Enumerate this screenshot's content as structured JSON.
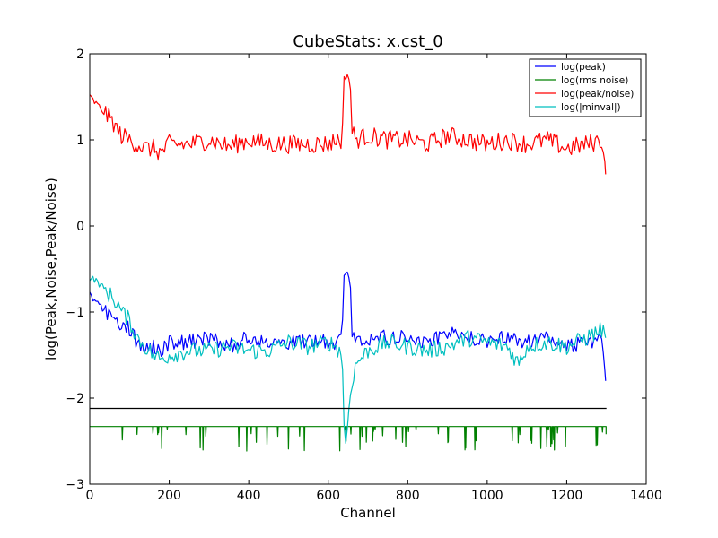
{
  "chart_data": {
    "type": "line",
    "title": "CubeStats: x.cst_0",
    "xlabel": "Channel",
    "ylabel": "log(Peak,Noise,Peak/Noise)",
    "xlim": [
      0,
      1400
    ],
    "ylim": [
      -3,
      2
    ],
    "xticks": [
      0,
      200,
      400,
      600,
      800,
      1000,
      1200,
      1400
    ],
    "yticks": [
      -3,
      -2,
      -1,
      0,
      1,
      2
    ],
    "xtick_labels": [
      "0",
      "200",
      "400",
      "600",
      "800",
      "1000",
      "1200",
      "1400"
    ],
    "ytick_labels": [
      "−3",
      "−2",
      "−1",
      "0",
      "1",
      "2"
    ],
    "grid": false,
    "legend_position": "top-right",
    "n_channels": 1300,
    "series": [
      {
        "name": "log(peak)",
        "color": "#0000ff",
        "x": [
          0,
          10,
          20,
          30,
          40,
          50,
          60,
          70,
          80,
          100,
          120,
          140,
          160,
          180,
          200,
          250,
          300,
          350,
          400,
          450,
          500,
          550,
          600,
          620,
          635,
          640,
          645,
          650,
          655,
          660,
          670,
          700,
          750,
          800,
          850,
          900,
          950,
          1000,
          1050,
          1100,
          1150,
          1200,
          1250,
          1290,
          1298
        ],
        "y": [
          -0.8,
          -0.85,
          -0.9,
          -0.95,
          -1.0,
          -1.0,
          -1.05,
          -1.1,
          -1.15,
          -1.2,
          -1.35,
          -1.4,
          -1.4,
          -1.45,
          -1.35,
          -1.35,
          -1.3,
          -1.4,
          -1.3,
          -1.35,
          -1.35,
          -1.35,
          -1.35,
          -1.35,
          -1.3,
          -0.6,
          -0.55,
          -0.55,
          -0.6,
          -1.2,
          -1.35,
          -1.3,
          -1.3,
          -1.3,
          -1.35,
          -1.25,
          -1.3,
          -1.35,
          -1.3,
          -1.35,
          -1.3,
          -1.4,
          -1.35,
          -1.3,
          -1.8
        ]
      },
      {
        "name": "log(rms noise)",
        "color": "#008000",
        "x": [
          0,
          1300
        ],
        "y": [
          -2.33,
          -2.33
        ]
      },
      {
        "name": "log(peak/noise)",
        "color": "#ff0000",
        "x": [
          0,
          10,
          20,
          30,
          40,
          50,
          60,
          70,
          80,
          100,
          120,
          140,
          160,
          180,
          200,
          250,
          300,
          350,
          400,
          450,
          500,
          550,
          600,
          620,
          635,
          640,
          645,
          650,
          655,
          660,
          670,
          700,
          750,
          800,
          850,
          900,
          950,
          1000,
          1050,
          1100,
          1150,
          1200,
          1250,
          1290,
          1298
        ],
        "y": [
          1.5,
          1.45,
          1.4,
          1.35,
          1.3,
          1.25,
          1.2,
          1.1,
          1.05,
          1.0,
          0.95,
          0.9,
          0.9,
          0.85,
          0.95,
          0.95,
          1.0,
          0.92,
          1.0,
          0.95,
          0.95,
          0.95,
          0.95,
          1.0,
          1.0,
          1.7,
          1.75,
          1.75,
          1.7,
          1.1,
          1.0,
          1.05,
          1.0,
          1.0,
          0.95,
          1.05,
          1.0,
          0.95,
          1.0,
          0.95,
          1.0,
          0.9,
          0.95,
          1.0,
          0.6
        ]
      },
      {
        "name": "log(|minval|)",
        "color": "#00bfbf",
        "x": [
          0,
          10,
          20,
          30,
          40,
          50,
          60,
          70,
          80,
          90,
          100,
          110,
          120,
          140,
          160,
          180,
          200,
          250,
          300,
          350,
          400,
          450,
          500,
          550,
          600,
          620,
          635,
          640,
          645,
          650,
          655,
          660,
          670,
          700,
          750,
          800,
          850,
          900,
          950,
          1000,
          1050,
          1080,
          1100,
          1150,
          1200,
          1250,
          1290,
          1298
        ],
        "y": [
          -0.6,
          -0.62,
          -0.65,
          -0.7,
          -0.75,
          -0.8,
          -0.85,
          -0.9,
          -1.0,
          -1.05,
          -1.1,
          -1.2,
          -1.3,
          -1.4,
          -1.5,
          -1.55,
          -1.5,
          -1.45,
          -1.45,
          -1.4,
          -1.45,
          -1.45,
          -1.35,
          -1.4,
          -1.35,
          -1.4,
          -1.5,
          -2.3,
          -2.6,
          -2.2,
          -2.0,
          -1.8,
          -1.6,
          -1.45,
          -1.35,
          -1.4,
          -1.45,
          -1.4,
          -1.3,
          -1.35,
          -1.4,
          -1.6,
          -1.4,
          -1.35,
          -1.4,
          -1.3,
          -1.2,
          -1.3
        ]
      },
      {
        "name": "",
        "color": "#000000",
        "x": [
          0,
          1300
        ],
        "y": [
          -2.12,
          -2.12
        ]
      }
    ]
  }
}
